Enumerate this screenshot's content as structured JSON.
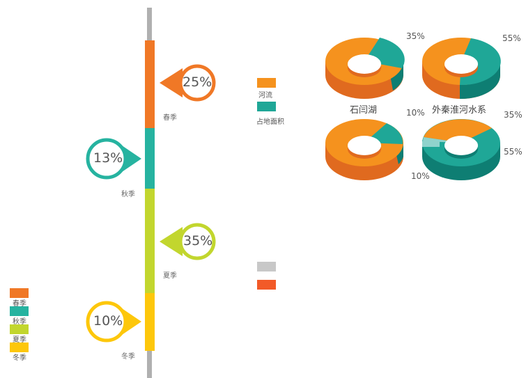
{
  "colors": {
    "spring": "#f07826",
    "autumn": "#26b3a0",
    "summer": "#c2d62e",
    "winter": "#fdc70b",
    "axis": "#b0b0b0",
    "river": "#f5921e",
    "river_dark": "#e06a1f",
    "land": "#1fa797",
    "land_dark": "#0e7e73",
    "land_light": "#8fd3cc",
    "gray_swatch": "#c8c8c8",
    "red_swatch": "#f25a28"
  },
  "chart_data": [
    {
      "type": "bar",
      "orientation": "vertical-stacked-timeline",
      "categories": [
        "春季",
        "秋季",
        "夏季",
        "冬季"
      ],
      "values": [
        25,
        13,
        35,
        10
      ],
      "value_labels": [
        "25%",
        "13%",
        "35%",
        "10%"
      ],
      "legend": [
        "春季",
        "秋季",
        "夏季",
        "冬季"
      ],
      "legend_placement": "bottom-left"
    },
    {
      "type": "pie",
      "variant": "3d-donut",
      "legend": [
        "河流",
        "占地面积"
      ],
      "charts": [
        {
          "label": "石闫湖",
          "values": [
            65,
            35
          ],
          "value_labels": [
            "",
            "35%"
          ]
        },
        {
          "label": "外秦淮河水系",
          "values": [
            45,
            55
          ],
          "value_labels": [
            "",
            "55%"
          ]
        },
        {
          "label": "",
          "values": [
            90,
            10
          ],
          "value_labels": [
            "",
            "10%"
          ]
        },
        {
          "label": "",
          "values": [
            35,
            55,
            10
          ],
          "value_labels": [
            "35%",
            "55%",
            "10%"
          ]
        }
      ]
    }
  ],
  "season_labels": {
    "spring": "春季",
    "autumn": "秋季",
    "summer": "夏季",
    "winter": "冬季"
  },
  "season_percents": {
    "spring": "25%",
    "autumn": "13%",
    "summer": "35%",
    "winter": "10%"
  },
  "legend_seasons": [
    "春季",
    "秋季",
    "夏季",
    "冬季"
  ],
  "legend_water": {
    "river": "河流",
    "land": "占地面积"
  },
  "donut_labels": {
    "d1": "石闫湖",
    "d2": "外秦淮河水系"
  },
  "donut_percents": {
    "d1": "35%",
    "d2": "55%",
    "d3": "10%",
    "d4a": "35%",
    "d4b": "55%",
    "d4c": "10%"
  }
}
